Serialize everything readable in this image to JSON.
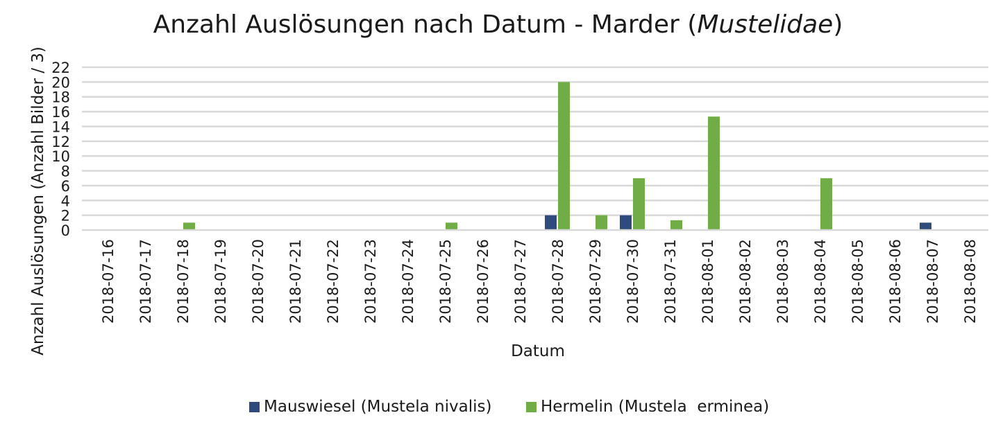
{
  "title": {
    "main": "Anzahl Auslösungen nach Datum - Marder (",
    "italic": "Mustelidae",
    "close": ")"
  },
  "chart_data": {
    "type": "bar",
    "xlabel": "Datum",
    "ylabel": "Anzahl Auslösungen (Anzahl Bilder / 3)",
    "ylim": [
      0,
      22
    ],
    "yticks": [
      0,
      2,
      4,
      6,
      8,
      10,
      12,
      14,
      16,
      18,
      20,
      22
    ],
    "grid": true,
    "legend_position": "bottom",
    "categories": [
      "2018-07-16",
      "2018-07-17",
      "2018-07-18",
      "2018-07-19",
      "2018-07-20",
      "2018-07-21",
      "2018-07-22",
      "2018-07-23",
      "2018-07-24",
      "2018-07-25",
      "2018-07-26",
      "2018-07-27",
      "2018-07-28",
      "2018-07-29",
      "2018-07-30",
      "2018-07-31",
      "2018-08-01",
      "2018-08-02",
      "2018-08-03",
      "2018-08-04",
      "2018-08-05",
      "2018-08-06",
      "2018-08-07",
      "2018-08-08"
    ],
    "series": [
      {
        "name": "Mauswiesel (Mustela nivalis)",
        "color": "#2f4b7c",
        "values": [
          0,
          0,
          0,
          0,
          0,
          0,
          0,
          0,
          0,
          0,
          0,
          0,
          2,
          0,
          2,
          0,
          0,
          0,
          0,
          0,
          0,
          0,
          1,
          0
        ]
      },
      {
        "name": "Hermelin (Mustela  erminea)",
        "color": "#70ad47",
        "values": [
          0,
          0,
          1,
          0,
          0,
          0,
          0,
          0,
          0,
          1,
          0,
          0,
          20,
          2,
          7,
          1.33,
          15.33,
          0,
          0,
          7,
          0,
          0,
          0,
          0
        ]
      }
    ]
  }
}
